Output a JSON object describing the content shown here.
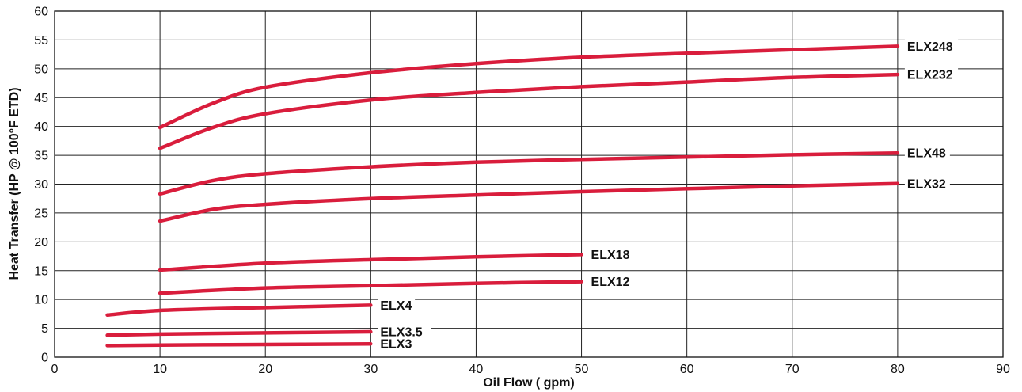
{
  "colors": {
    "series": "#d91d3c",
    "grid": "#222222",
    "text": "#111111"
  },
  "chart_data": {
    "type": "line",
    "xlabel": "Oil Flow ( gpm)",
    "ylabel": "Heat Transfer (HP @ 100°F ETD)",
    "xlim": [
      0,
      90
    ],
    "ylim": [
      0,
      60
    ],
    "xticks": [
      0,
      10,
      20,
      30,
      40,
      50,
      60,
      70,
      80,
      90
    ],
    "yticks": [
      0,
      5,
      10,
      15,
      20,
      25,
      30,
      35,
      40,
      45,
      50,
      55,
      60
    ],
    "grid": true,
    "series": [
      {
        "name": "ELX248",
        "x": [
          10,
          15,
          20,
          30,
          40,
          50,
          60,
          70,
          80
        ],
        "y": [
          39.8,
          44.0,
          46.8,
          49.3,
          50.9,
          52.0,
          52.7,
          53.3,
          53.9
        ]
      },
      {
        "name": "ELX232",
        "x": [
          10,
          15,
          20,
          30,
          40,
          50,
          60,
          70,
          80
        ],
        "y": [
          36.2,
          39.8,
          42.2,
          44.6,
          45.9,
          46.9,
          47.7,
          48.5,
          49.0
        ]
      },
      {
        "name": "ELX48",
        "x": [
          10,
          15,
          20,
          30,
          40,
          50,
          60,
          70,
          80
        ],
        "y": [
          28.3,
          30.6,
          31.8,
          33.0,
          33.8,
          34.3,
          34.7,
          35.1,
          35.4
        ]
      },
      {
        "name": "ELX32",
        "x": [
          10,
          15,
          20,
          30,
          40,
          50,
          60,
          70,
          80
        ],
        "y": [
          23.6,
          25.6,
          26.5,
          27.5,
          28.1,
          28.7,
          29.2,
          29.7,
          30.1
        ]
      },
      {
        "name": "ELX18",
        "x": [
          10,
          20,
          30,
          40,
          50
        ],
        "y": [
          15.1,
          16.3,
          16.9,
          17.4,
          17.8
        ]
      },
      {
        "name": "ELX12",
        "x": [
          10,
          20,
          30,
          40,
          50
        ],
        "y": [
          11.1,
          12.0,
          12.4,
          12.8,
          13.1
        ]
      },
      {
        "name": "ELX4",
        "x": [
          5,
          10,
          20,
          30
        ],
        "y": [
          7.3,
          8.1,
          8.6,
          9.0
        ]
      },
      {
        "name": "ELX3.5",
        "x": [
          5,
          10,
          20,
          30
        ],
        "y": [
          3.8,
          4.0,
          4.2,
          4.4
        ]
      },
      {
        "name": "ELX3",
        "x": [
          5,
          10,
          20,
          30
        ],
        "y": [
          2.0,
          2.1,
          2.2,
          2.3
        ]
      }
    ]
  }
}
